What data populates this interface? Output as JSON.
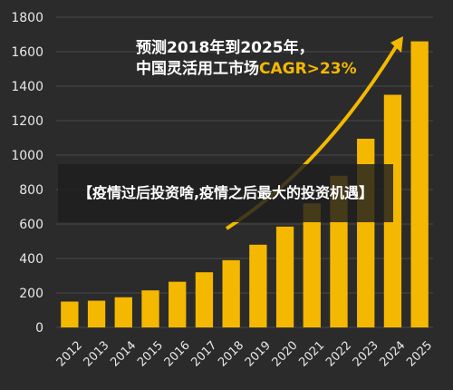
{
  "chart_data": {
    "type": "bar",
    "categories": [
      "2012",
      "2013",
      "2014",
      "2015",
      "2016",
      "2017",
      "2018",
      "2019",
      "2020",
      "2021",
      "2022",
      "2023",
      "2024",
      "2025"
    ],
    "values": [
      150,
      155,
      175,
      215,
      265,
      320,
      390,
      480,
      585,
      720,
      880,
      1095,
      1350,
      1660
    ],
    "ylim": [
      0,
      1800
    ],
    "yticks": [
      0,
      200,
      400,
      600,
      800,
      1000,
      1200,
      1400,
      1600,
      1800
    ],
    "bar_color": "#f5b800",
    "grid": true,
    "title": "【疫情过后投资啥,疫情之后最大的投资机遇】",
    "annotation": {
      "line1": "预测2018年到2025年，",
      "line2_prefix": "中国灵活用工市场",
      "line2_highlight": "CAGR>23%",
      "highlight_color": "#f5b800"
    }
  }
}
